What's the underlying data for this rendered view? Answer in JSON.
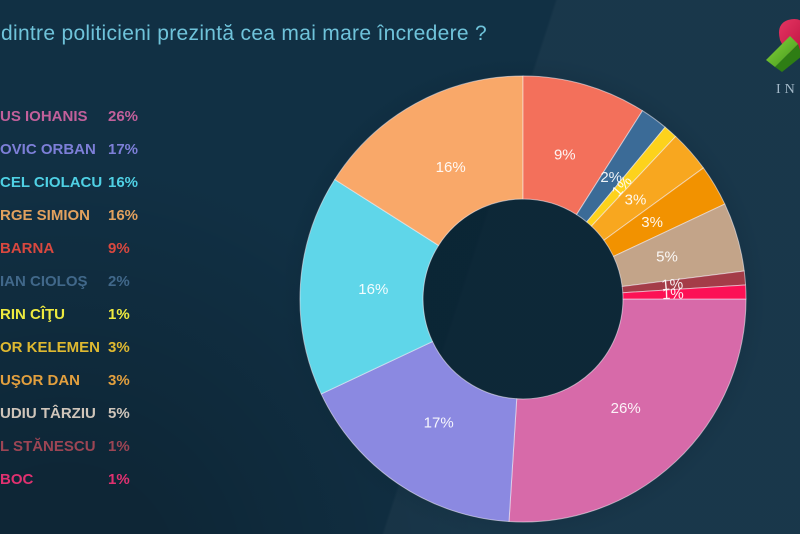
{
  "page": {
    "background": "#113044",
    "halo_color": "#08212f"
  },
  "title": {
    "text": "dintre politicieni prezintă cea mai mare încredere ?",
    "color": "#6fc3da"
  },
  "logo": {
    "caption": "IN",
    "gem_green_light": "#79c832",
    "gem_green_dark": "#2e7d14",
    "gem_red": "#d81f48"
  },
  "legend": {
    "items": [
      {
        "label": "US IOHANIS",
        "value": "26%",
        "color": "#c2609b"
      },
      {
        "label": "OVIC ORBAN",
        "value": "17%",
        "color": "#7d7fd8"
      },
      {
        "label": "CEL CIOLACU",
        "value": "16%",
        "color": "#4fd0e4"
      },
      {
        "label": "RGE SIMION",
        "value": "16%",
        "color": "#e2a15e"
      },
      {
        "label": "BARNA",
        "value": "9%",
        "color": "#d9483f"
      },
      {
        "label": "IAN CIOLOŞ",
        "value": "2%",
        "color": "#41688a"
      },
      {
        "label": "RIN CÎŢU",
        "value": "1%",
        "color": "#eeea3f"
      },
      {
        "label": "OR KELEMEN",
        "value": "3%",
        "color": "#dfb930"
      },
      {
        "label": "UŞOR DAN",
        "value": "3%",
        "color": "#e3a03e"
      },
      {
        "label": "UDIU TÂRZIU",
        "value": "5%",
        "color": "#cfc5ba"
      },
      {
        "label": "L STĂNESCU",
        "value": "1%",
        "color": "#9c4554"
      },
      {
        "label": "BOC",
        "value": "1%",
        "color": "#e03170"
      }
    ]
  },
  "chart_data": {
    "type": "pie",
    "donut": true,
    "title": "dintre politicieni prezintă cea mai mare încredere ?",
    "start_angle_deg_from_top": 90,
    "direction": "clockwise",
    "label_format": "value%",
    "label_color": "#ffffff",
    "slices": [
      {
        "name": "US IOHANIS",
        "value": 26,
        "color": "#d76aa9"
      },
      {
        "name": "OVIC ORBAN",
        "value": 17,
        "color": "#8b89e1"
      },
      {
        "name": "CEL CIOLACU",
        "value": 16,
        "color": "#5fd6e9"
      },
      {
        "name": "RGE SIMION",
        "value": 16,
        "color": "#f9a869"
      },
      {
        "name": "BARNA",
        "value": 9,
        "color": "#f3705b"
      },
      {
        "name": "IAN CIOLOŞ",
        "value": 2,
        "color": "#3b6b97"
      },
      {
        "name": "RIN CÎŢU",
        "value": 1,
        "color": "#fdd21c"
      },
      {
        "name": "OR KELEMEN",
        "value": 3,
        "color": "#f8a71f"
      },
      {
        "name": "UŞOR DAN",
        "value": 3,
        "color": "#f29200"
      },
      {
        "name": "UDIU TÂRZIU",
        "value": 5,
        "color": "#c3a489"
      },
      {
        "name": "L STĂNESCU",
        "value": 1,
        "color": "#a43c48"
      },
      {
        "name": "BOC",
        "value": 1,
        "color": "#fc1155"
      }
    ]
  }
}
